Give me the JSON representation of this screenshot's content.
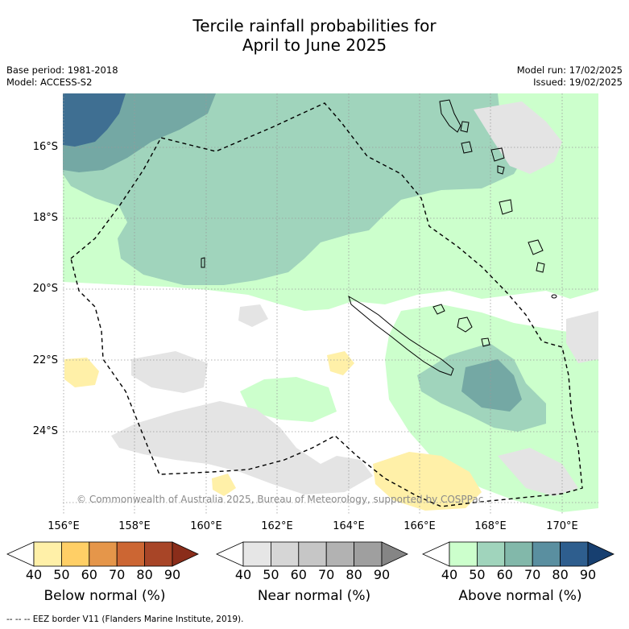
{
  "title": {
    "line1": "Tercile rainfall probabilities for",
    "line2": "April to June 2025"
  },
  "meta": {
    "base_period": "Base period: 1981-2018",
    "model": "Model: ACCESS-S2",
    "model_run": "Model run: 17/02/2025",
    "issued": "Issued: 19/02/2025"
  },
  "axes": {
    "lat_labels": [
      "16°S",
      "18°S",
      "20°S",
      "22°S",
      "24°S"
    ],
    "lon_labels": [
      "156°E",
      "158°E",
      "160°E",
      "162°E",
      "164°E",
      "166°E",
      "168°E",
      "170°E"
    ],
    "lon_range": [
      155.5,
      171
    ],
    "lat_range": [
      -26.3,
      -14.6
    ],
    "grid": "dotted"
  },
  "credit": "© Commonwealth of Australia 2025, Bureau of Meteorology, supported by COSPPac",
  "colorbars": [
    {
      "title": "Below normal (%)",
      "ticks": [
        "40",
        "50",
        "60",
        "70",
        "80",
        "90"
      ],
      "colors": [
        "#ffffff",
        "#fff0a8",
        "#ffcf66",
        "#e5964a",
        "#cc6633",
        "#a84527",
        "#8a2d1a"
      ]
    },
    {
      "title": "Near normal (%)",
      "ticks": [
        "40",
        "50",
        "60",
        "70",
        "80",
        "90"
      ],
      "colors": [
        "#ffffff",
        "#e6e6e6",
        "#d6d6d6",
        "#c6c6c6",
        "#b2b2b2",
        "#9f9f9f",
        "#858585"
      ]
    },
    {
      "title": "Above normal (%)",
      "ticks": [
        "40",
        "50",
        "60",
        "70",
        "80",
        "90"
      ],
      "colors": [
        "#ffffff",
        "#ccffcc",
        "#a0d4bc",
        "#82b8aa",
        "#5a8fa0",
        "#2e5e8e",
        "#173f70"
      ]
    }
  ],
  "footer": "--  --  -- EEZ border V11 (Flanders Marine Institute, 2019).",
  "map_colors": {
    "above_50": "#ccffcc",
    "above_60": "#a0d4bc",
    "above_70": "#74a8a4",
    "above_80": "#3f6f92",
    "near_50": "#e4e4e4",
    "below_50": "#fff0a8"
  }
}
